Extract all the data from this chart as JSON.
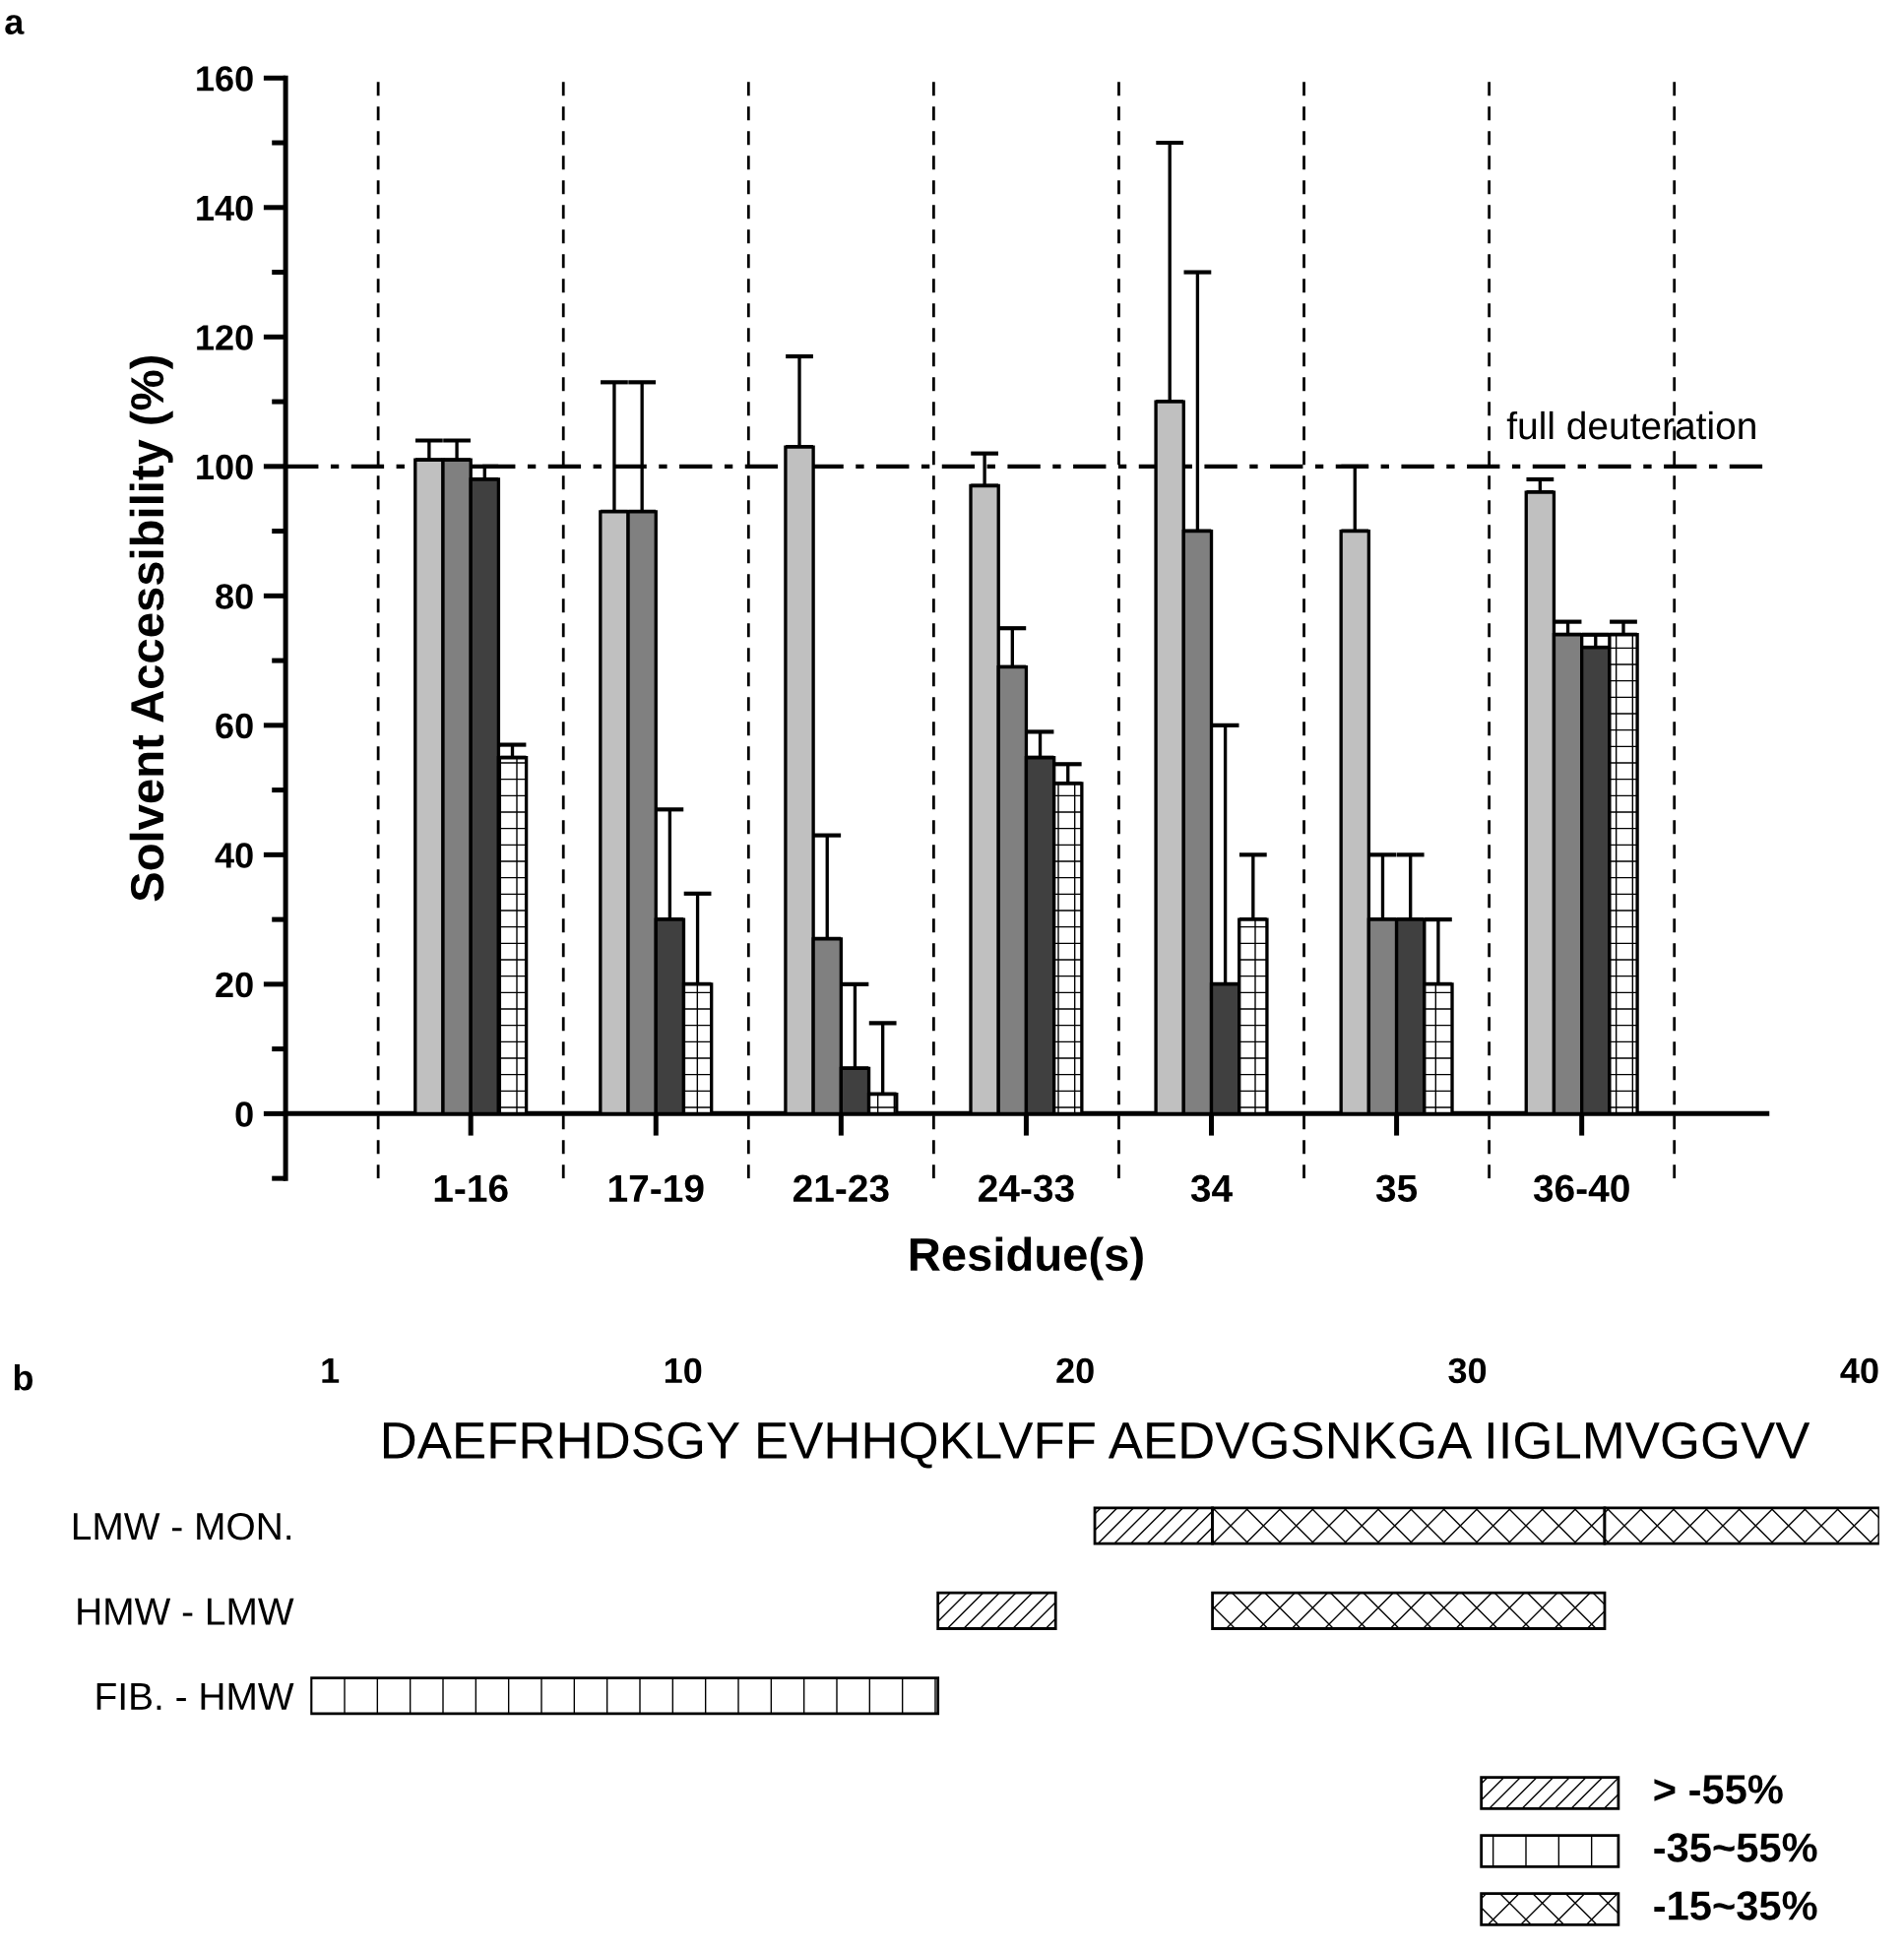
{
  "chart_data": [
    {
      "type": "bar",
      "xlabel": "Residue(s)",
      "ylabel": "Solvent Accessibility (%)",
      "categories": [
        "1-16",
        "17-19",
        "21-23",
        "24-33",
        "34",
        "35",
        "36-40"
      ],
      "series": [
        {
          "color": "#c0c0c0",
          "values": [
            101,
            93,
            103,
            97,
            110,
            90,
            96
          ],
          "errors": [
            [
              101,
              104
            ],
            [
              93,
              113
            ],
            [
              103,
              117
            ],
            [
              97,
              102
            ],
            [
              110,
              150
            ],
            [
              90,
              100
            ],
            [
              96,
              98
            ]
          ]
        },
        {
          "color": "#808080",
          "values": [
            101,
            93,
            27,
            69,
            90,
            30,
            74
          ],
          "errors": [
            [
              101,
              104
            ],
            [
              93,
              113
            ],
            [
              27,
              43
            ],
            [
              69,
              75
            ],
            [
              90,
              130
            ],
            [
              30,
              40
            ],
            [
              74,
              76
            ]
          ]
        },
        {
          "color": "#404040",
          "values": [
            98,
            30,
            7,
            55,
            20,
            30,
            72
          ],
          "errors": [
            [
              98,
              100
            ],
            [
              30,
              47
            ],
            [
              7,
              20
            ],
            [
              55,
              59
            ],
            [
              20,
              60
            ],
            [
              30,
              40
            ],
            [
              72,
              74
            ]
          ]
        },
        {
          "color": "#ffffff",
          "values": [
            55,
            20,
            3,
            51,
            30,
            20,
            74
          ],
          "errors": [
            [
              55,
              57
            ],
            [
              20,
              34
            ],
            [
              3,
              14
            ],
            [
              51,
              54
            ],
            [
              30,
              40
            ],
            [
              20,
              30
            ],
            [
              74,
              76
            ]
          ]
        }
      ],
      "ylim": [
        -10,
        160
      ],
      "yticks": [
        0,
        20,
        40,
        60,
        80,
        100,
        120,
        140,
        160
      ],
      "grid": "x",
      "ref_lines": [
        {
          "axis": "y",
          "value": 100,
          "label": "full deuteration",
          "line_style": "dashdot"
        }
      ],
      "annotations": [
        "a"
      ],
      "legend": false
    },
    {
      "type": "bar",
      "orientation": "horizontal",
      "categories": [
        "LMW - MON.",
        "HMW - LMW",
        "FIB. - HMW"
      ],
      "series": [
        {
          "name": "> -55%",
          "color": "#ffffff",
          "base": [
            20.5,
            16.5,
            null
          ],
          "values": [
            3,
            3,
            null
          ]
        },
        {
          "name": "-35~55%",
          "color": "#ffffff",
          "base": [
            null,
            null,
            0.5
          ],
          "values": [
            null,
            null,
            16
          ]
        },
        {
          "name": "-15~35%",
          "color": "#ffffff",
          "base": [
            23.5,
            23.5,
            null
          ],
          "values": [
            10,
            10,
            null
          ]
        },
        {
          "color": "#ffffff",
          "base": [
            33.5,
            null,
            null
          ],
          "values": [
            7,
            null,
            null
          ]
        }
      ],
      "xlim": [
        0.5,
        40.5
      ],
      "xticks": [
        1,
        10,
        20,
        30,
        40
      ],
      "annotations": [
        "b",
        "DAEFRHDSGY EVHHQKLVFF AEDVGSNKGA IIGLMVGGVV"
      ],
      "legend": "bottom right"
    }
  ]
}
